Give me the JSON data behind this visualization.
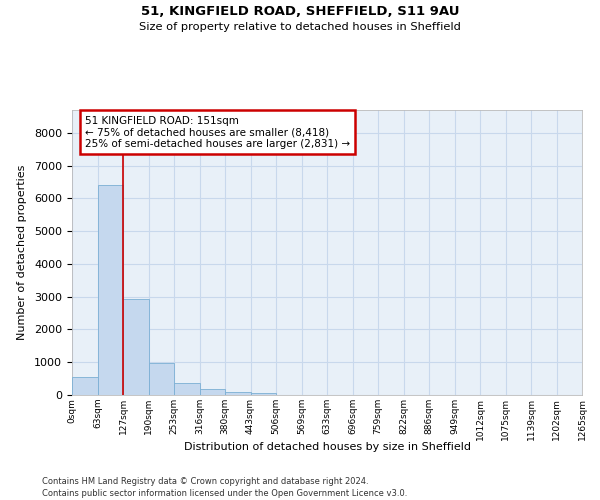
{
  "title1": "51, KINGFIELD ROAD, SHEFFIELD, S11 9AU",
  "title2": "Size of property relative to detached houses in Sheffield",
  "xlabel": "Distribution of detached houses by size in Sheffield",
  "ylabel": "Number of detached properties",
  "bar_color": "#c5d8ee",
  "bar_edge_color": "#7bafd4",
  "bin_labels": [
    "0sqm",
    "63sqm",
    "127sqm",
    "190sqm",
    "253sqm",
    "316sqm",
    "380sqm",
    "443sqm",
    "506sqm",
    "569sqm",
    "633sqm",
    "696sqm",
    "759sqm",
    "822sqm",
    "886sqm",
    "949sqm",
    "1012sqm",
    "1075sqm",
    "1139sqm",
    "1202sqm",
    "1265sqm"
  ],
  "bar_values": [
    555,
    6400,
    2920,
    970,
    370,
    175,
    100,
    65,
    0,
    0,
    0,
    0,
    0,
    0,
    0,
    0,
    0,
    0,
    0,
    0
  ],
  "ylim": [
    0,
    8700
  ],
  "yticks": [
    0,
    1000,
    2000,
    3000,
    4000,
    5000,
    6000,
    7000,
    8000
  ],
  "property_line_x": 2.0,
  "annotation_line1": "51 KINGFIELD ROAD: 151sqm",
  "annotation_line2": "← 75% of detached houses are smaller (8,418)",
  "annotation_line3": "25% of semi-detached houses are larger (2,831) →",
  "annotation_box_facecolor": "#ffffff",
  "annotation_box_edgecolor": "#cc0000",
  "footnote1": "Contains HM Land Registry data © Crown copyright and database right 2024.",
  "footnote2": "Contains public sector information licensed under the Open Government Licence v3.0.",
  "grid_color": "#c8d8ec",
  "axes_background": "#e8f0f8",
  "fig_background": "#ffffff"
}
